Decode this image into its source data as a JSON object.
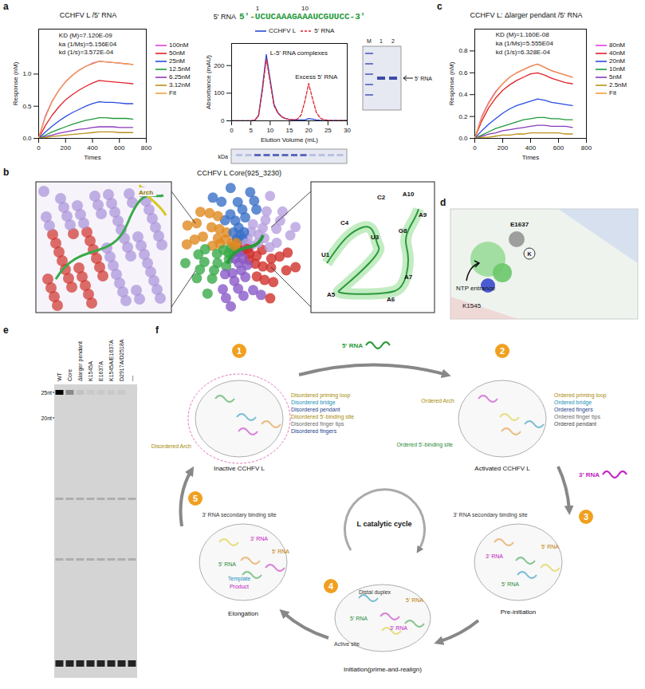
{
  "chart_data": [
    {
      "type": "line",
      "title": "CCHFV L /5' RNA",
      "x_label": "Times",
      "y_label": "Response (nM)",
      "x": [
        0,
        50,
        100,
        150,
        200,
        250,
        300,
        350,
        400,
        450,
        500,
        550,
        600,
        650,
        700
      ],
      "xlim": [
        0,
        800
      ],
      "xticks": [
        0,
        200,
        400,
        600,
        800
      ],
      "ylim": [
        0,
        1.7
      ],
      "yticks": [
        {
          "value": 0,
          "label": "0.0"
        },
        {
          "value": 0.5,
          "label": "0.5"
        },
        {
          "value": 1,
          "label": "1.0"
        }
      ],
      "legend": "right",
      "annotations": [
        {
          "text": "KD (M)=7.120E-09",
          "x": 150,
          "y": 1.6
        },
        {
          "text": "ka (1/Ms)=5.156E04",
          "x": 150,
          "y": 1.47
        },
        {
          "text": "kd (1/s)=3.572E-04",
          "x": 150,
          "y": 1.34
        }
      ],
      "series": [
        {
          "name": "100nM",
          "color": "#e03ee0",
          "values": [
            0,
            0.35,
            0.58,
            0.75,
            0.88,
            0.98,
            1.06,
            1.12,
            1.17,
            1.2,
            1.19,
            1.18,
            1.17,
            1.16,
            1.15
          ]
        },
        {
          "name": "50nM",
          "color": "#e0202a",
          "values": [
            0,
            0.2,
            0.36,
            0.49,
            0.6,
            0.68,
            0.75,
            0.81,
            0.86,
            0.9,
            0.89,
            0.88,
            0.87,
            0.86,
            0.85
          ]
        },
        {
          "name": "25nM",
          "color": "#2a4be0",
          "values": [
            0,
            0.1,
            0.19,
            0.27,
            0.34,
            0.4,
            0.45,
            0.5,
            0.54,
            0.57,
            0.56,
            0.56,
            0.55,
            0.54,
            0.54
          ]
        },
        {
          "name": "12.5nM",
          "color": "#1f9a3a",
          "values": [
            0,
            0.05,
            0.1,
            0.14,
            0.18,
            0.22,
            0.25,
            0.28,
            0.3,
            0.32,
            0.32,
            0.31,
            0.31,
            0.31,
            0.3
          ]
        },
        {
          "name": "6.25nM",
          "color": "#8a3ab8",
          "values": [
            0,
            0.03,
            0.05,
            0.08,
            0.1,
            0.12,
            0.14,
            0.15,
            0.17,
            0.18,
            0.18,
            0.18,
            0.17,
            0.17,
            0.17
          ]
        },
        {
          "name": "3.12nM",
          "color": "#b89018",
          "values": [
            0,
            0.01,
            0.03,
            0.04,
            0.05,
            0.06,
            0.07,
            0.08,
            0.09,
            0.1,
            0.1,
            0.1,
            0.09,
            0.09,
            0.09
          ]
        },
        {
          "name": "Fit",
          "color": "#f0a040",
          "values": [
            0,
            0.33,
            0.57,
            0.75,
            0.88,
            0.98,
            1.06,
            1.12,
            1.16,
            1.2,
            1.19,
            1.18,
            1.17,
            1.16,
            1.15
          ]
        }
      ]
    },
    {
      "type": "line",
      "x_label": "Elution Volume (mL)",
      "y_label": "Absorbance (mAU)",
      "x": [
        0,
        1,
        2,
        3,
        4,
        5,
        6,
        7,
        8,
        9,
        10,
        11,
        12,
        13,
        14,
        15,
        16,
        17,
        18,
        19,
        20,
        21,
        22,
        23,
        24,
        25,
        26,
        27,
        28,
        29,
        30
      ],
      "xlim": [
        0,
        30
      ],
      "xticks": [
        0,
        5,
        10,
        15,
        20,
        25,
        30
      ],
      "ylim": [
        0,
        280
      ],
      "yticks": [
        0,
        100,
        200
      ],
      "legend": "top",
      "annotations": [
        {
          "text": "L-5' RNA complexes",
          "x": 10,
          "y": 245
        },
        {
          "text": "Excess 5' RNA",
          "x": 16.5,
          "y": 160
        }
      ],
      "series": [
        {
          "name": "CCHFV L",
          "color": "#2a4bd0",
          "line_style": "solid",
          "values": [
            0,
            0,
            0,
            0,
            0,
            0,
            2,
            20,
            120,
            240,
            150,
            60,
            30,
            15,
            8,
            5,
            3,
            3,
            3,
            3,
            8,
            6,
            3,
            2,
            1,
            1,
            1,
            1,
            1,
            1,
            1
          ]
        },
        {
          "name": "5' RNA",
          "color": "#e0202a",
          "line_style": "dashed",
          "values": [
            0,
            0,
            0,
            0,
            0,
            0,
            2,
            18,
            110,
            225,
            140,
            55,
            28,
            14,
            8,
            5,
            4,
            6,
            20,
            70,
            135,
            80,
            30,
            10,
            4,
            2,
            1,
            1,
            1,
            1,
            1
          ]
        }
      ]
    },
    {
      "type": "line",
      "title": "CCHFV L: Δlarger pendant /5' RNA",
      "x_label": "Times",
      "y_label": "Response (nM)",
      "x": [
        0,
        50,
        100,
        150,
        200,
        250,
        300,
        350,
        400,
        450,
        500,
        550,
        600,
        650,
        700
      ],
      "xlim": [
        0,
        800
      ],
      "xticks": [
        0,
        200,
        400,
        600,
        800
      ],
      "ylim": [
        0,
        1.0
      ],
      "yticks": [
        {
          "value": 0,
          "label": "0.0"
        },
        {
          "value": 0.2,
          "label": "0.2"
        },
        {
          "value": 0.4,
          "label": "0.4"
        },
        {
          "value": 0.6,
          "label": "0.6"
        },
        {
          "value": 0.8,
          "label": "0.8"
        }
      ],
      "legend": "right",
      "annotations": [
        {
          "text": "KD (M)=1.160E-08",
          "x": 150,
          "y": 0.95
        },
        {
          "text": "ka (1/Ms)=5.555E04",
          "x": 150,
          "y": 0.87
        },
        {
          "text": "kd (1/s)=6.328E-04",
          "x": 150,
          "y": 0.79
        }
      ],
      "series": [
        {
          "name": "80nM",
          "color": "#e03ee0",
          "values": [
            0,
            0.2,
            0.33,
            0.43,
            0.5,
            0.56,
            0.6,
            0.63,
            0.66,
            0.68,
            0.65,
            0.62,
            0.6,
            0.58,
            0.56
          ]
        },
        {
          "name": "40nM",
          "color": "#e0202a",
          "values": [
            0,
            0.16,
            0.28,
            0.37,
            0.44,
            0.49,
            0.53,
            0.56,
            0.59,
            0.6,
            0.58,
            0.55,
            0.53,
            0.51,
            0.5
          ]
        },
        {
          "name": "20nM",
          "color": "#2a4be0",
          "values": [
            0,
            0.07,
            0.13,
            0.18,
            0.23,
            0.27,
            0.3,
            0.32,
            0.34,
            0.36,
            0.35,
            0.33,
            0.32,
            0.31,
            0.3
          ]
        },
        {
          "name": "10nM",
          "color": "#1f9a3a",
          "values": [
            0,
            0.03,
            0.06,
            0.09,
            0.11,
            0.13,
            0.15,
            0.17,
            0.18,
            0.19,
            0.19,
            0.18,
            0.18,
            0.17,
            0.17
          ]
        },
        {
          "name": "5nM",
          "color": "#8a3ab8",
          "values": [
            0,
            0.02,
            0.04,
            0.05,
            0.07,
            0.08,
            0.09,
            0.1,
            0.11,
            0.12,
            0.12,
            0.11,
            0.11,
            0.11,
            0.1
          ]
        },
        {
          "name": "2.5nM",
          "color": "#b89018",
          "values": [
            0,
            0.01,
            0.01,
            0.02,
            0.03,
            0.03,
            0.04,
            0.04,
            0.05,
            0.05,
            0.05,
            0.05,
            0.05,
            0.04,
            0.04
          ]
        },
        {
          "name": "Fit",
          "color": "#f0a040",
          "values": [
            0,
            0.19,
            0.32,
            0.42,
            0.5,
            0.56,
            0.6,
            0.63,
            0.66,
            0.68,
            0.65,
            0.62,
            0.6,
            0.58,
            0.56
          ]
        }
      ]
    }
  ],
  "panel_letters": [
    "a",
    "b",
    "c",
    "d",
    "e",
    "f"
  ],
  "panel_a": {
    "sequence_label": "5' RNA",
    "sequence": "5'-UCUCAAAGAAAUCGUUCC-3'",
    "sequence_numbers": [
      1,
      10
    ],
    "gel_bottom_label": "kDa",
    "gel_right": {
      "lanes": [
        "M",
        "1",
        "2"
      ],
      "band_label": "5' RNA"
    }
  },
  "panel_b": {
    "title": "CCHFV L Core(925_3230)",
    "inset_left_label": "Arch",
    "nucleotides": [
      "U1",
      "C2",
      "U3",
      "C4",
      "A5",
      "A6",
      "A7",
      "G8",
      "A9",
      "A10"
    ]
  },
  "panel_d": {
    "labels": [
      "E1637",
      "K",
      "NTP entrance",
      "K1545"
    ]
  },
  "panel_e": {
    "lanes": [
      "WT",
      "Core",
      "Δlarger pendant",
      "K1545A",
      "E1637A",
      "K1545A/E1637A",
      "D2917A/D2518A",
      "—"
    ],
    "product_band": [
      1,
      0.35,
      0.08,
      0.05,
      0.05,
      0.05,
      0.05,
      0
    ],
    "markers": [
      {
        "label": "25nt",
        "nt": 25
      },
      {
        "label": "20nt",
        "nt": 20
      }
    ]
  },
  "panel_f": {
    "center_label": "L catalytic cycle",
    "transition_labels": [
      "5' RNA",
      "3' RNA"
    ],
    "transition_colors": [
      "#2a9a3a",
      "#c020c0"
    ],
    "states": [
      {
        "number": 1,
        "label": "Inactive CCHFV L",
        "notes": [
          "Disordered priming loop",
          "Disordered bridge",
          "Disordered pendant",
          "Disordered 5'-binding site",
          "Disordered finger tips",
          "Disordered fingers",
          "Disordered Arch"
        ],
        "colors": [
          "#a88a0a",
          "#1a90b8",
          "#1c3f8c",
          "#a88a0a",
          "#6a6a6a",
          "#1c3f8c",
          "#a88a0a"
        ]
      },
      {
        "number": 2,
        "label": "Activated CCHFV L",
        "notes": [
          "Ordered priming loop",
          "Ordered bridge",
          "Ordered fingers",
          "Ordered finger tips",
          "Ordered pendant",
          "Ordered Arch",
          "Ordered 5'-binding site"
        ],
        "colors": [
          "#a88a0a",
          "#1a90b8",
          "#1c3f8c",
          "#6a6a6a",
          "#444444",
          "#a88a0a",
          "#2a8a3a"
        ]
      },
      {
        "number": 3,
        "label": "Pre-initiation",
        "notes": [
          "3' RNA secondary binding site",
          "5' RNA",
          "3' RNA",
          "5' RNA"
        ],
        "colors": [
          "#333333",
          "#c07a00",
          "#c020c0",
          "#2a8a3a"
        ]
      },
      {
        "number": 4,
        "label": "Initiation(prime-and-realign)",
        "notes": [
          "Distal duplex",
          "5' RNA",
          "3' RNA",
          "5' RNA",
          "Active site"
        ],
        "colors": [
          "#333333",
          "#c07a00",
          "#c020c0",
          "#2a8a3a",
          "#333333"
        ]
      },
      {
        "number": 5,
        "label": "Elongation",
        "notes": [
          "3' RNA secondary binding site",
          "3' RNA",
          "5' RNA",
          "5' RNA",
          "Template",
          "Product"
        ],
        "colors": [
          "#333333",
          "#c020c0",
          "#c07a00",
          "#2a8a3a",
          "#1a90b8",
          "#c020c0"
        ]
      }
    ]
  }
}
